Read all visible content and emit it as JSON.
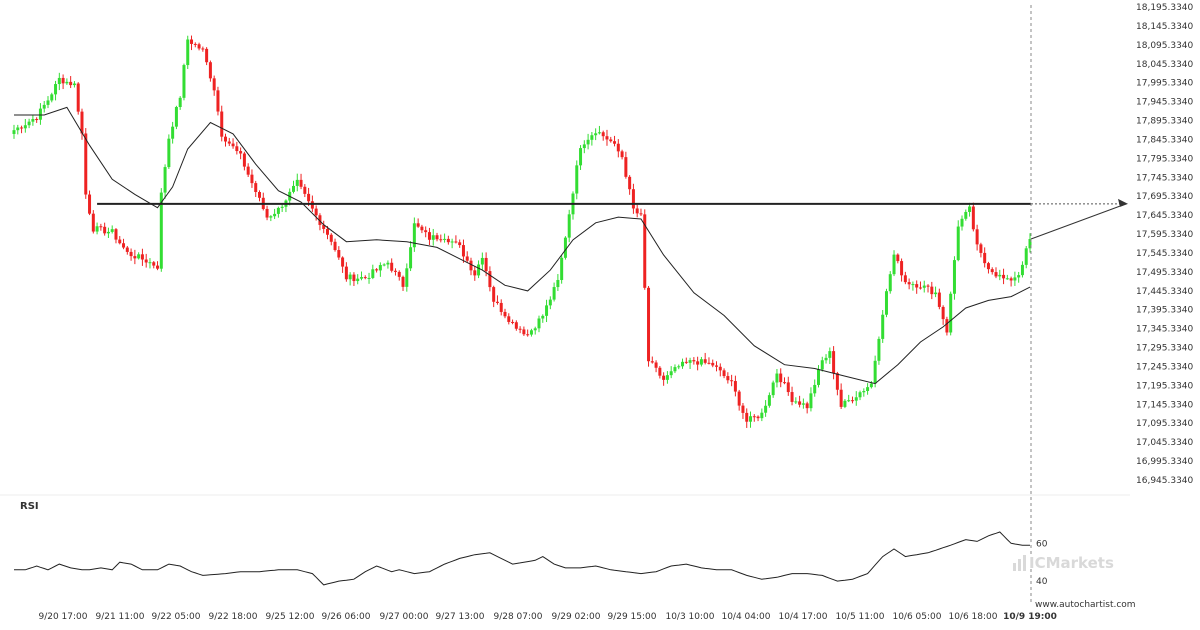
{
  "chart_data": {
    "type": "candlestick",
    "colors": {
      "up": "#33dd33",
      "down": "#ee2222",
      "ma": "#222222",
      "level": "#222222",
      "rsi": "#222222"
    },
    "x_labels": [
      "9/20 17:00",
      "9/21 11:00",
      "9/22 05:00",
      "9/22 18:00",
      "9/25 12:00",
      "9/26 06:00",
      "9/27 00:00",
      "9/27 13:00",
      "9/28 07:00",
      "9/29 02:00",
      "9/29 15:00",
      "10/3 10:00",
      "10/4 04:00",
      "10/4 17:00",
      "10/5 11:00",
      "10/6 05:00",
      "10/6 18:00",
      "10/9 19:00"
    ],
    "y_ticks": [
      "18,195.3340",
      "18,145.3340",
      "18,095.3340",
      "18,045.3340",
      "17,995.3340",
      "17,945.3340",
      "17,895.3340",
      "17,845.3340",
      "17,795.3340",
      "17,745.3340",
      "17,695.3340",
      "17,645.3340",
      "17,595.3340",
      "17,545.3340",
      "17,495.3340",
      "17,445.3340",
      "17,395.3340",
      "17,345.3340",
      "17,295.3340",
      "17,245.3340",
      "17,195.3340",
      "17,145.3340",
      "17,095.3340",
      "17,045.3340",
      "16,995.3340",
      "16,945.3340"
    ],
    "ylim": [
      16945.334,
      18195.334
    ],
    "close_anchors": [
      [
        0,
        17870
      ],
      [
        6,
        17905
      ],
      [
        9,
        17950
      ],
      [
        12,
        18005
      ],
      [
        16,
        17990
      ],
      [
        18,
        17860
      ],
      [
        19,
        17700
      ],
      [
        21,
        17610
      ],
      [
        26,
        17600
      ],
      [
        30,
        17545
      ],
      [
        35,
        17525
      ],
      [
        38,
        17510
      ],
      [
        39,
        17700
      ],
      [
        41,
        17850
      ],
      [
        44,
        17960
      ],
      [
        46,
        18110
      ],
      [
        50,
        18080
      ],
      [
        53,
        17980
      ],
      [
        55,
        17860
      ],
      [
        60,
        17800
      ],
      [
        63,
        17730
      ],
      [
        67,
        17640
      ],
      [
        70,
        17660
      ],
      [
        75,
        17730
      ],
      [
        79,
        17660
      ],
      [
        84,
        17580
      ],
      [
        88,
        17480
      ],
      [
        93,
        17480
      ],
      [
        99,
        17520
      ],
      [
        103,
        17460
      ],
      [
        106,
        17620
      ],
      [
        110,
        17585
      ],
      [
        114,
        17590
      ],
      [
        118,
        17560
      ],
      [
        122,
        17490
      ],
      [
        124,
        17540
      ],
      [
        127,
        17420
      ],
      [
        132,
        17360
      ],
      [
        136,
        17330
      ],
      [
        140,
        17380
      ],
      [
        144,
        17470
      ],
      [
        147,
        17650
      ],
      [
        150,
        17830
      ],
      [
        154,
        17870
      ],
      [
        158,
        17840
      ],
      [
        161,
        17800
      ],
      [
        164,
        17660
      ],
      [
        166,
        17640
      ],
      [
        168,
        17260
      ],
      [
        172,
        17210
      ],
      [
        176,
        17245
      ],
      [
        180,
        17260
      ],
      [
        185,
        17250
      ],
      [
        190,
        17200
      ],
      [
        194,
        17100
      ],
      [
        198,
        17120
      ],
      [
        202,
        17230
      ],
      [
        206,
        17160
      ],
      [
        210,
        17140
      ],
      [
        214,
        17260
      ],
      [
        216,
        17280
      ],
      [
        219,
        17140
      ],
      [
        223,
        17170
      ],
      [
        227,
        17200
      ],
      [
        230,
        17390
      ],
      [
        233,
        17540
      ],
      [
        236,
        17470
      ],
      [
        240,
        17460
      ],
      [
        244,
        17440
      ],
      [
        247,
        17340
      ],
      [
        250,
        17620
      ],
      [
        253,
        17660
      ],
      [
        255,
        17560
      ],
      [
        257,
        17520
      ],
      [
        260,
        17490
      ],
      [
        263,
        17470
      ],
      [
        266,
        17490
      ],
      [
        269,
        17580
      ]
    ],
    "ma_points": [
      [
        0,
        17910
      ],
      [
        8,
        17910
      ],
      [
        14,
        17930
      ],
      [
        20,
        17830
      ],
      [
        26,
        17740
      ],
      [
        32,
        17700
      ],
      [
        38,
        17665
      ],
      [
        42,
        17720
      ],
      [
        46,
        17820
      ],
      [
        52,
        17890
      ],
      [
        58,
        17860
      ],
      [
        64,
        17780
      ],
      [
        70,
        17710
      ],
      [
        76,
        17680
      ],
      [
        82,
        17620
      ],
      [
        88,
        17575
      ],
      [
        96,
        17580
      ],
      [
        104,
        17575
      ],
      [
        112,
        17560
      ],
      [
        118,
        17530
      ],
      [
        124,
        17500
      ],
      [
        130,
        17460
      ],
      [
        136,
        17445
      ],
      [
        142,
        17500
      ],
      [
        148,
        17580
      ],
      [
        154,
        17625
      ],
      [
        160,
        17640
      ],
      [
        166,
        17635
      ],
      [
        172,
        17540
      ],
      [
        180,
        17440
      ],
      [
        188,
        17380
      ],
      [
        196,
        17300
      ],
      [
        204,
        17250
      ],
      [
        212,
        17240
      ],
      [
        220,
        17220
      ],
      [
        228,
        17200
      ],
      [
        234,
        17250
      ],
      [
        240,
        17310
      ],
      [
        246,
        17350
      ],
      [
        252,
        17400
      ],
      [
        258,
        17420
      ],
      [
        264,
        17430
      ],
      [
        269,
        17455
      ]
    ],
    "level": 17675,
    "level_start_index": 22,
    "projection_end": 17675,
    "rsi": {
      "label": "RSI",
      "ticks": [
        60,
        40
      ],
      "ylim": [
        30,
        75
      ],
      "anchors": [
        [
          0,
          46
        ],
        [
          3,
          46
        ],
        [
          6,
          48
        ],
        [
          9,
          46
        ],
        [
          12,
          49
        ],
        [
          15,
          47
        ],
        [
          18,
          46
        ],
        [
          20,
          46
        ],
        [
          23,
          47
        ],
        [
          26,
          46
        ],
        [
          28,
          50
        ],
        [
          31,
          49
        ],
        [
          34,
          46
        ],
        [
          38,
          46
        ],
        [
          41,
          49
        ],
        [
          44,
          48
        ],
        [
          47,
          45
        ],
        [
          50,
          43
        ],
        [
          56,
          44
        ],
        [
          60,
          45
        ],
        [
          65,
          45
        ],
        [
          70,
          46
        ],
        [
          75,
          46
        ],
        [
          79,
          44
        ],
        [
          82,
          38
        ],
        [
          86,
          40
        ],
        [
          90,
          41
        ],
        [
          93,
          45
        ],
        [
          96,
          48
        ],
        [
          100,
          45
        ],
        [
          102,
          46
        ],
        [
          106,
          44
        ],
        [
          110,
          45
        ],
        [
          114,
          49
        ],
        [
          118,
          52
        ],
        [
          122,
          54
        ],
        [
          126,
          55
        ],
        [
          129,
          52
        ],
        [
          132,
          49
        ],
        [
          135,
          50
        ],
        [
          138,
          51
        ],
        [
          140,
          53
        ],
        [
          143,
          49
        ],
        [
          146,
          47
        ],
        [
          150,
          47
        ],
        [
          154,
          48
        ],
        [
          158,
          46
        ],
        [
          162,
          45
        ],
        [
          166,
          44
        ],
        [
          170,
          45
        ],
        [
          174,
          48
        ],
        [
          178,
          49
        ],
        [
          182,
          47
        ],
        [
          186,
          46
        ],
        [
          190,
          46
        ],
        [
          194,
          43
        ],
        [
          198,
          41
        ],
        [
          202,
          42
        ],
        [
          206,
          44
        ],
        [
          210,
          44
        ],
        [
          214,
          43
        ],
        [
          218,
          40
        ],
        [
          222,
          41
        ],
        [
          226,
          44
        ],
        [
          230,
          53
        ],
        [
          233,
          57
        ],
        [
          236,
          53
        ],
        [
          239,
          54
        ],
        [
          242,
          55
        ],
        [
          245,
          57
        ],
        [
          248,
          59
        ],
        [
          252,
          62
        ],
        [
          255,
          61
        ],
        [
          258,
          64
        ],
        [
          261,
          66
        ],
        [
          264,
          60
        ],
        [
          267,
          59
        ],
        [
          269,
          59
        ]
      ]
    },
    "brand": "ICMarkets",
    "credit": "www.autochartist.com"
  }
}
